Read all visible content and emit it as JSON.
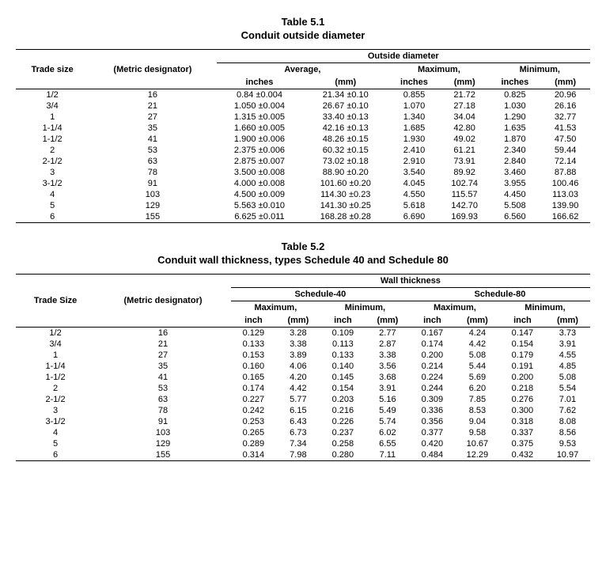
{
  "table1": {
    "number": "Table 5.1",
    "title": "Conduit outside diameter",
    "group_headers": [
      "Trade size",
      "(Metric designator)",
      "Outside diameter"
    ],
    "sub_headers": [
      "Average,",
      "Maximum,",
      "Minimum,"
    ],
    "unit_headers": [
      "inches",
      "(mm)",
      "inches",
      "(mm)",
      "inches",
      "(mm)"
    ],
    "rows": [
      [
        "1/2",
        "16",
        "0.84 ±0.004",
        "21.34 ±0.10",
        "0.855",
        "21.72",
        "0.825",
        "20.96"
      ],
      [
        "3/4",
        "21",
        "1.050 ±0.004",
        "26.67 ±0.10",
        "1.070",
        "27.18",
        "1.030",
        "26.16"
      ],
      [
        "1",
        "27",
        "1.315 ±0.005",
        "33.40 ±0.13",
        "1.340",
        "34.04",
        "1.290",
        "32.77"
      ],
      [
        "1-1/4",
        "35",
        "1.660 ±0.005",
        "42.16 ±0.13",
        "1.685",
        "42.80",
        "1.635",
        "41.53"
      ],
      [
        "1-1/2",
        "41",
        "1.900 ±0.006",
        "48.26 ±0.15",
        "1.930",
        "49.02",
        "1.870",
        "47.50"
      ],
      [
        "2",
        "53",
        "2.375 ±0.006",
        "60.32 ±0.15",
        "2.410",
        "61.21",
        "2.340",
        "59.44"
      ],
      [
        "2-1/2",
        "63",
        "2.875 ±0.007",
        "73.02 ±0.18",
        "2.910",
        "73.91",
        "2.840",
        "72.14"
      ],
      [
        "3",
        "78",
        "3.500 ±0.008",
        "88.90 ±0.20",
        "3.540",
        "89.92",
        "3.460",
        "87.88"
      ],
      [
        "3-1/2",
        "91",
        "4.000 ±0.008",
        "101.60 ±0.20",
        "4.045",
        "102.74",
        "3.955",
        "100.46"
      ],
      [
        "4",
        "103",
        "4.500 ±0.009",
        "114.30 ±0.23",
        "4.550",
        "115.57",
        "4.450",
        "113.03"
      ],
      [
        "5",
        "129",
        "5.563 ±0.010",
        "141.30 ±0.25",
        "5.618",
        "142.70",
        "5.508",
        "139.90"
      ],
      [
        "6",
        "155",
        "6.625 ±0.011",
        "168.28 ±0.28",
        "6.690",
        "169.93",
        "6.560",
        "166.62"
      ]
    ]
  },
  "table2": {
    "number": "Table 5.2",
    "title": "Conduit wall thickness, types Schedule 40 and Schedule 80",
    "group_headers": [
      "Trade Size",
      "(Metric designator)",
      "Wall thickness"
    ],
    "schedule_headers": [
      "Schedule-40",
      "Schedule-80"
    ],
    "sub_headers": [
      "Maximum,",
      "Minimum,",
      "Maximum,",
      "Minimum,"
    ],
    "unit_headers": [
      "inch",
      "(mm)",
      "inch",
      "(mm)",
      "inch",
      "(mm)",
      "inch",
      "(mm)"
    ],
    "rows": [
      [
        "1/2",
        "16",
        "0.129",
        "3.28",
        "0.109",
        "2.77",
        "0.167",
        "4.24",
        "0.147",
        "3.73"
      ],
      [
        "3/4",
        "21",
        "0.133",
        "3.38",
        "0.113",
        "2.87",
        "0.174",
        "4.42",
        "0.154",
        "3.91"
      ],
      [
        "1",
        "27",
        "0.153",
        "3.89",
        "0.133",
        "3.38",
        "0.200",
        "5.08",
        "0.179",
        "4.55"
      ],
      [
        "1-1/4",
        "35",
        "0.160",
        "4.06",
        "0.140",
        "3.56",
        "0.214",
        "5.44",
        "0.191",
        "4.85"
      ],
      [
        "1-1/2",
        "41",
        "0.165",
        "4.20",
        "0.145",
        "3.68",
        "0.224",
        "5.69",
        "0.200",
        "5.08"
      ],
      [
        "2",
        "53",
        "0.174",
        "4.42",
        "0.154",
        "3.91",
        "0.244",
        "6.20",
        "0.218",
        "5.54"
      ],
      [
        "2-1/2",
        "63",
        "0.227",
        "5.77",
        "0.203",
        "5.16",
        "0.309",
        "7.85",
        "0.276",
        "7.01"
      ],
      [
        "3",
        "78",
        "0.242",
        "6.15",
        "0.216",
        "5.49",
        "0.336",
        "8.53",
        "0.300",
        "7.62"
      ],
      [
        "3-1/2",
        "91",
        "0.253",
        "6.43",
        "0.226",
        "5.74",
        "0.356",
        "9.04",
        "0.318",
        "8.08"
      ],
      [
        "4",
        "103",
        "0.265",
        "6.73",
        "0.237",
        "6.02",
        "0.377",
        "9.58",
        "0.337",
        "8.56"
      ],
      [
        "5",
        "129",
        "0.289",
        "7.34",
        "0.258",
        "6.55",
        "0.420",
        "10.67",
        "0.375",
        "9.53"
      ],
      [
        "6",
        "155",
        "0.314",
        "7.98",
        "0.280",
        "7.11",
        "0.484",
        "12.29",
        "0.432",
        "10.97"
      ]
    ]
  }
}
